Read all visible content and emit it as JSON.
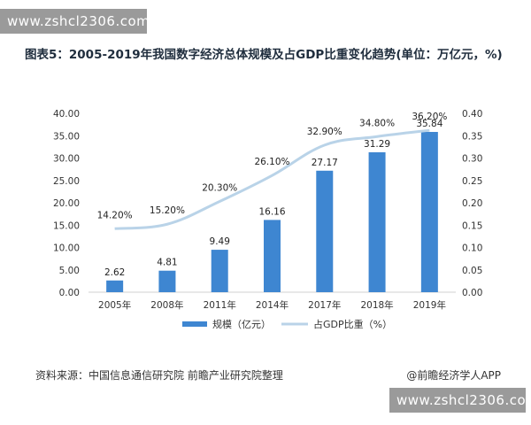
{
  "watermark": {
    "site": "www.zshcl2306.com"
  },
  "title": "图表5：2005-2019年我国数字经济总体规模及占GDP比重变化趋势(单位：万亿元，%)",
  "chart_data": {
    "type": "bar+line",
    "categories": [
      "2005年",
      "2008年",
      "2011年",
      "2014年",
      "2017年",
      "2018年",
      "2019年"
    ],
    "series": [
      {
        "name": "规模（亿元）",
        "type": "bar",
        "axis": "left",
        "values": [
          2.62,
          4.81,
          9.49,
          16.16,
          27.17,
          31.29,
          35.84
        ],
        "labels": [
          "2.62",
          "4.81",
          "9.49",
          "16.16",
          "27.17",
          "31.29",
          "35.84"
        ],
        "color": "#3e86d1"
      },
      {
        "name": "占GDP比重（%）",
        "type": "line",
        "axis": "right",
        "values": [
          0.142,
          0.152,
          0.203,
          0.261,
          0.329,
          0.348,
          0.362
        ],
        "labels": [
          "14.20%",
          "15.20%",
          "20.30%",
          "26.10%",
          "32.90%",
          "34.80%",
          "36.20%"
        ],
        "color": "#b9d3e8"
      }
    ],
    "y_left": {
      "min": 0,
      "max": 40,
      "ticks": [
        "0.00",
        "5.00",
        "10.00",
        "15.00",
        "20.00",
        "25.00",
        "30.00",
        "35.00",
        "40.00"
      ]
    },
    "y_right": {
      "min": 0,
      "max": 0.4,
      "ticks": [
        "0.00",
        "0.05",
        "0.10",
        "0.15",
        "0.20",
        "0.25",
        "0.30",
        "0.35",
        "0.40"
      ]
    },
    "grid": false,
    "legend": "bottom"
  },
  "footer": {
    "source": "资料来源：中国信息通信研究院 前瞻产业研究院整理",
    "brand": "@前瞻经济学人APP"
  }
}
